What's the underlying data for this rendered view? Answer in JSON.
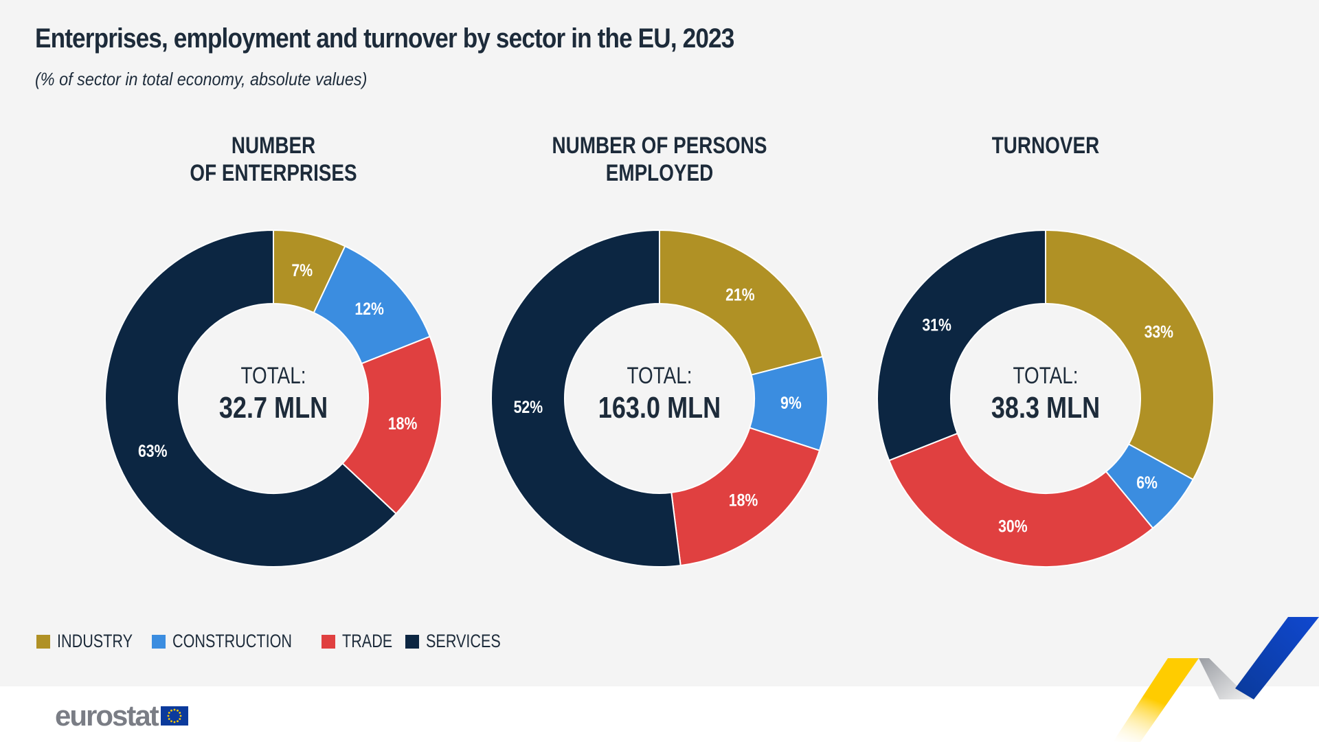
{
  "title": "Enterprises, employment and turnover by sector in the EU, 2023",
  "subtitle": "(% of sector in total economy, absolute values)",
  "colors": {
    "industry": "#b09125",
    "construction": "#3b8de0",
    "trade": "#e04040",
    "services": "#0c2642",
    "background": "#f4f4f4"
  },
  "legend": [
    {
      "label": "INDUSTRY",
      "color": "#b09125"
    },
    {
      "label": "CONSTRUCTION",
      "color": "#3b8de0"
    },
    {
      "label": "TRADE",
      "color": "#e04040"
    },
    {
      "label": "SERVICES",
      "color": "#0c2642"
    }
  ],
  "chart_data": [
    {
      "type": "pie",
      "variant": "donut",
      "title": "NUMBER OF ENTERPRISES",
      "center_label": "TOTAL:",
      "center_value": "32.7 MLN",
      "categories": [
        "INDUSTRY",
        "CONSTRUCTION",
        "TRADE",
        "SERVICES"
      ],
      "values": [
        7,
        12,
        18,
        63
      ],
      "data_labels": [
        "7%",
        "12%",
        "18%",
        "63%"
      ]
    },
    {
      "type": "pie",
      "variant": "donut",
      "title": "NUMBER OF PERSONS EMPLOYED",
      "center_label": "TOTAL:",
      "center_value": "163.0 MLN",
      "categories": [
        "INDUSTRY",
        "CONSTRUCTION",
        "TRADE",
        "SERVICES"
      ],
      "values": [
        21,
        9,
        18,
        52
      ],
      "data_labels": [
        "21%",
        "9%",
        "18%",
        "52%"
      ]
    },
    {
      "type": "pie",
      "variant": "donut",
      "title": "TURNOVER",
      "center_label": "TOTAL:",
      "center_value": "38.3 MLN",
      "categories": [
        "INDUSTRY",
        "CONSTRUCTION",
        "TRADE",
        "SERVICES"
      ],
      "values": [
        33,
        6,
        30,
        31
      ],
      "data_labels": [
        "33%",
        "6%",
        "30%",
        "31%"
      ]
    }
  ],
  "headings": [
    [
      "NUMBER",
      "OF ENTERPRISES"
    ],
    [
      "NUMBER OF PERSONS",
      "EMPLOYED"
    ],
    [
      "TURNOVER"
    ]
  ],
  "logo": {
    "text": "eurostat"
  }
}
